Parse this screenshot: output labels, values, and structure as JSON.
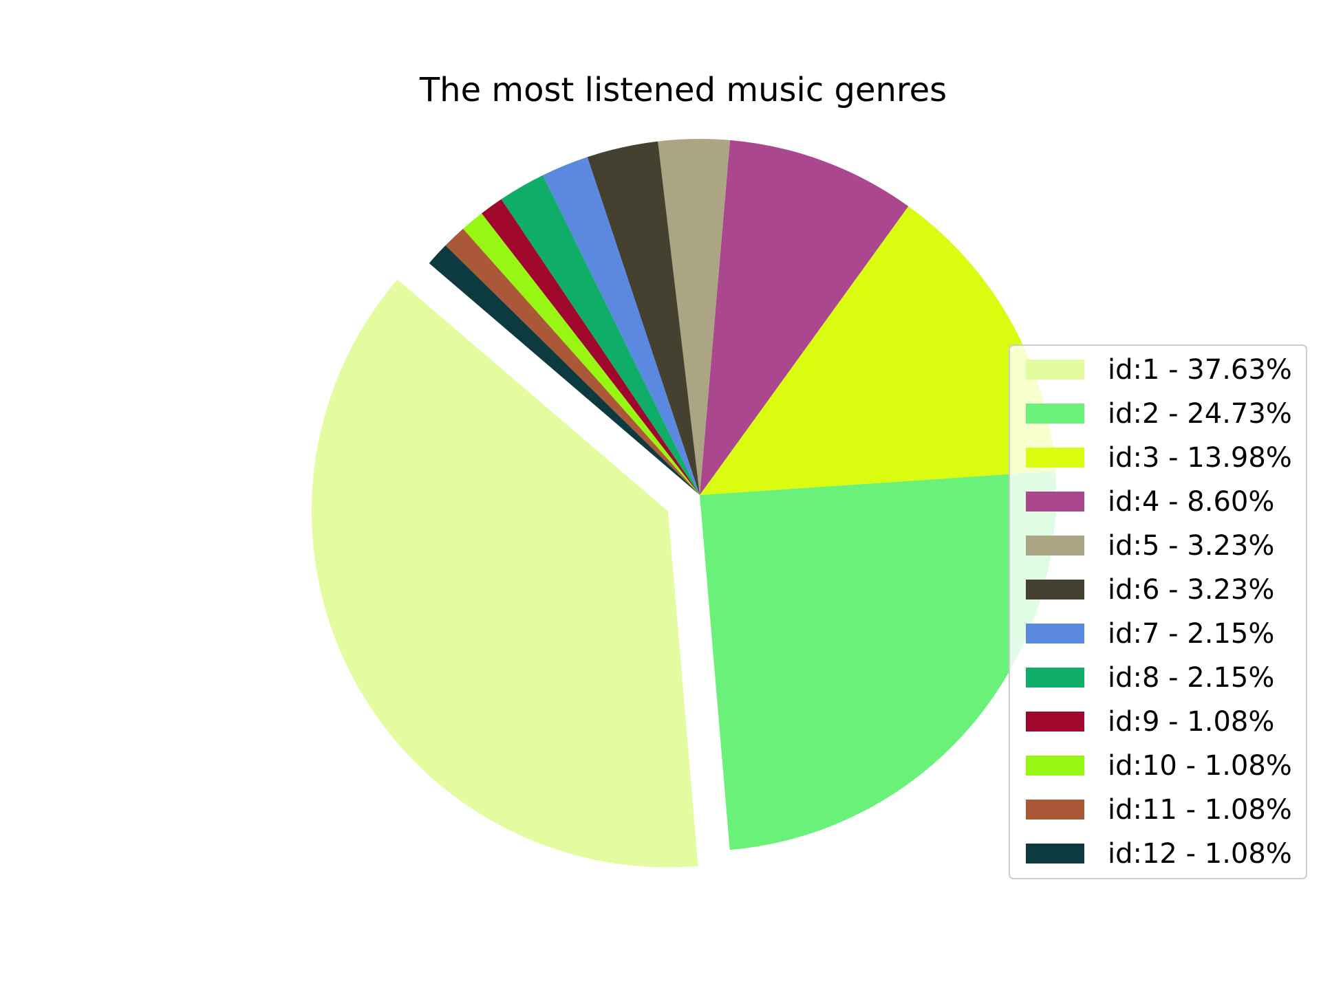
{
  "chart_data": {
    "type": "pie",
    "title": "The most listened music genres",
    "legend_position": "right",
    "slices": [
      {
        "label": "id:1 - 37.63%",
        "value": 37.63,
        "color": "#e3fc9f",
        "exploded": true
      },
      {
        "label": "id:2 - 24.73%",
        "value": 24.73,
        "color": "#6af179"
      },
      {
        "label": "id:3 - 13.98%",
        "value": 13.98,
        "color": "#dafc11"
      },
      {
        "label": "id:4 - 8.60%",
        "value": 8.6,
        "color": "#aa478f"
      },
      {
        "label": "id:5 - 3.23%",
        "value": 3.23,
        "color": "#aba583"
      },
      {
        "label": "id:6 - 3.23%",
        "value": 3.23,
        "color": "#454130"
      },
      {
        "label": "id:7 - 2.15%",
        "value": 2.15,
        "color": "#5b89e0"
      },
      {
        "label": "id:8 - 2.15%",
        "value": 2.15,
        "color": "#10ad69"
      },
      {
        "label": "id:9 - 1.08%",
        "value": 1.08,
        "color": "#a0072c"
      },
      {
        "label": "id:10 - 1.08%",
        "value": 1.08,
        "color": "#98f712"
      },
      {
        "label": "id:11 - 1.08%",
        "value": 1.08,
        "color": "#aa5837"
      },
      {
        "label": "id:12 - 1.08%",
        "value": 1.08,
        "color": "#0c3a3f"
      }
    ]
  }
}
